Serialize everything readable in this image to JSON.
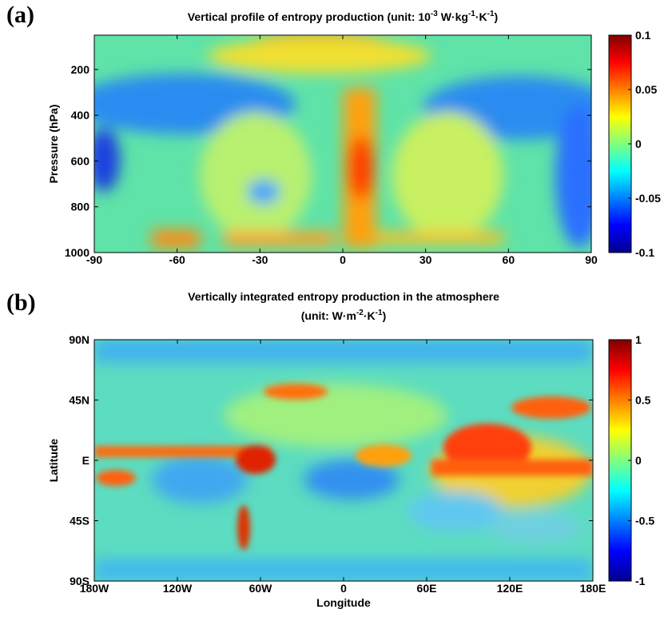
{
  "chart_data": [
    {
      "type": "heatmap",
      "panel_label": "(a)",
      "title_parts": [
        "Vertical profile of entropy production (unit: 10",
        "-3",
        " W·kg",
        "-1",
        "·K",
        "-1",
        ")"
      ],
      "ylabel": "Pressure (hPa)",
      "xlim": [
        -90,
        90
      ],
      "xticks": [
        -90,
        -60,
        -30,
        0,
        30,
        60,
        90
      ],
      "ylim": [
        1000,
        50
      ],
      "yticks": [
        200,
        400,
        600,
        800,
        1000
      ],
      "clim": [
        -0.1,
        0.1
      ],
      "cticks": [
        -0.1,
        -0.05,
        0,
        0.05,
        0.1
      ],
      "colormap": "jet"
    },
    {
      "type": "heatmap",
      "panel_label": "(b)",
      "title": "Vertically integrated entropy production in the atmosphere",
      "title_parts": [
        "(unit: W·m",
        "-2",
        "·K",
        "-1",
        ")"
      ],
      "xlabel": "Longitude",
      "ylabel": "Latitude",
      "xlim": [
        -180,
        180
      ],
      "xticks": [
        {
          "value": -180,
          "label": "180W"
        },
        {
          "value": -120,
          "label": "120W"
        },
        {
          "value": -60,
          "label": "60W"
        },
        0,
        {
          "value": 60,
          "label": "60E"
        },
        {
          "value": 120,
          "label": "120E"
        },
        {
          "value": 180,
          "label": "180E"
        }
      ],
      "ylim": [
        -90,
        90
      ],
      "yticks": [
        {
          "value": -90,
          "label": "90S"
        },
        {
          "value": -45,
          "label": "45S"
        },
        {
          "value": 0,
          "label": "E"
        },
        {
          "value": 45,
          "label": "45N"
        },
        {
          "value": 90,
          "label": "90N"
        }
      ],
      "clim": [
        -1,
        1
      ],
      "cticks": [
        -1,
        -0.5,
        0,
        0.5,
        1
      ],
      "colormap": "jet"
    }
  ]
}
